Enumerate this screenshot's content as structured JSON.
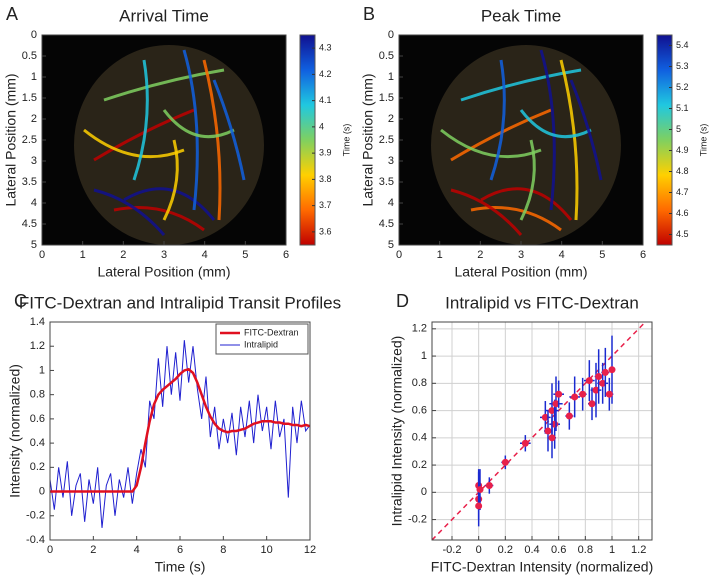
{
  "chart_data": [
    {
      "panel": "A",
      "type": "image",
      "title": "Arrival Time",
      "xlabel": "Lateral Position (mm)",
      "ylabel": "Lateral Position (mm)",
      "xlim": [
        0,
        6
      ],
      "xticks": [
        0,
        1,
        2,
        3,
        4,
        5,
        6
      ],
      "ylim": [
        5,
        0
      ],
      "yticks": [
        0,
        0.5,
        1,
        1.5,
        2,
        2.5,
        3,
        3.5,
        4,
        4.5,
        5
      ],
      "colorbar": {
        "label": "Time (s)",
        "lim": [
          3.55,
          4.35
        ],
        "ticks": [
          3.6,
          3.7,
          3.8,
          3.9,
          4,
          4.1,
          4.2,
          4.3
        ],
        "colors": [
          "#c00000",
          "#ff6a00",
          "#ffd000",
          "#7fd060",
          "#20c8e0",
          "#1060e0",
          "#101090"
        ]
      }
    },
    {
      "panel": "B",
      "type": "image",
      "title": "Peak Time",
      "xlabel": "Lateral Position (mm)",
      "ylabel": "Lateral Position (mm)",
      "xlim": [
        0,
        6
      ],
      "xticks": [
        0,
        1,
        2,
        3,
        4,
        5,
        6
      ],
      "ylim": [
        5,
        0
      ],
      "yticks": [
        0,
        0.5,
        1,
        1.5,
        2,
        2.5,
        3,
        3.5,
        4,
        4.5,
        5
      ],
      "colorbar": {
        "label": "Time (s)",
        "lim": [
          4.45,
          5.45
        ],
        "ticks": [
          4.5,
          4.6,
          4.7,
          4.8,
          4.9,
          5,
          5.1,
          5.2,
          5.3,
          5.4
        ],
        "colors": [
          "#c00000",
          "#ff6a00",
          "#ffd000",
          "#7fd060",
          "#20c8e0",
          "#1060e0",
          "#101090"
        ]
      }
    },
    {
      "panel": "C",
      "type": "line",
      "title": "FITC-Dextran and Intralipid Transit Profiles",
      "xlabel": "Time (s)",
      "ylabel": "Intensity (normalized)",
      "xlim": [
        0,
        12
      ],
      "xticks": [
        0,
        2,
        4,
        6,
        8,
        10,
        12
      ],
      "ylim": [
        -0.4,
        1.4
      ],
      "yticks": [
        -0.4,
        -0.2,
        0,
        0.2,
        0.4,
        0.6,
        0.8,
        1,
        1.2,
        1.4
      ],
      "legend": "upper right",
      "grid": false,
      "x": [
        0,
        0.2,
        0.4,
        0.6,
        0.8,
        1,
        1.2,
        1.4,
        1.6,
        1.8,
        2,
        2.2,
        2.4,
        2.6,
        2.8,
        3,
        3.2,
        3.4,
        3.6,
        3.8,
        4,
        4.2,
        4.4,
        4.6,
        4.8,
        5,
        5.2,
        5.4,
        5.6,
        5.8,
        6,
        6.2,
        6.4,
        6.6,
        6.8,
        7,
        7.2,
        7.4,
        7.6,
        7.8,
        8,
        8.2,
        8.4,
        8.6,
        8.8,
        9,
        9.2,
        9.4,
        9.6,
        9.8,
        10,
        10.2,
        10.4,
        10.6,
        10.8,
        11,
        11.2,
        11.4,
        11.6,
        11.8,
        12
      ],
      "series": [
        {
          "name": "Intralipid",
          "color": "#2020d0",
          "width": 1,
          "values": [
            0.1,
            -0.15,
            0.2,
            -0.05,
            0.25,
            -0.2,
            0.05,
            0.15,
            -0.25,
            0.1,
            -0.1,
            0.2,
            -0.3,
            0.05,
            0.15,
            -0.2,
            0.1,
            -0.05,
            0.2,
            -0.1,
            0.15,
            0.35,
            0.2,
            0.75,
            0.6,
            1.1,
            0.7,
            1.2,
            0.8,
            1.15,
            0.75,
            1.25,
            0.9,
            1.2,
            0.85,
            0.6,
            0.95,
            0.45,
            0.7,
            0.35,
            0.6,
            0.4,
            0.65,
            0.3,
            0.7,
            0.45,
            0.75,
            0.4,
            0.8,
            0.5,
            0.7,
            0.35,
            0.75,
            0.45,
            0.6,
            -0.05,
            0.7,
            0.4,
            0.75,
            0.5,
            0.55
          ]
        },
        {
          "name": "FITC-Dextran",
          "color": "#e01020",
          "width": 2.5,
          "values": [
            0,
            0,
            0,
            0,
            0,
            0,
            0,
            0,
            0,
            0,
            0,
            0,
            0,
            0,
            0,
            0,
            0,
            0,
            0,
            0,
            0.05,
            0.2,
            0.4,
            0.58,
            0.72,
            0.8,
            0.84,
            0.87,
            0.9,
            0.93,
            0.97,
            1,
            1.01,
            0.98,
            0.9,
            0.8,
            0.7,
            0.62,
            0.56,
            0.52,
            0.5,
            0.49,
            0.5,
            0.5,
            0.51,
            0.52,
            0.54,
            0.56,
            0.57,
            0.58,
            0.58,
            0.58,
            0.57,
            0.57,
            0.56,
            0.56,
            0.55,
            0.55,
            0.54,
            0.55,
            0.54
          ]
        }
      ]
    },
    {
      "panel": "D",
      "type": "scatter",
      "title": "Intralipid vs FITC-Dextran",
      "xlabel": "FITC-Dextran Intensity (normalized)",
      "ylabel": "Intralipid Intensity (normalized)",
      "xlim": [
        -0.35,
        1.3
      ],
      "xticks": [
        -0.2,
        0,
        0.2,
        0.4,
        0.6,
        0.8,
        1,
        1.2
      ],
      "ylim": [
        -0.35,
        1.25
      ],
      "yticks": [
        -0.2,
        0,
        0.2,
        0.4,
        0.6,
        0.8,
        1,
        1.2
      ],
      "grid": true,
      "identity_line": true,
      "color": "#e8204a",
      "errorbar_color": "#1a2ad0",
      "x": [
        0,
        0,
        0.01,
        0,
        0.08,
        0.2,
        0.35,
        0.5,
        0.52,
        0.55,
        0.57,
        0.58,
        0.6,
        0.55,
        0.68,
        0.72,
        0.78,
        0.83,
        0.85,
        0.88,
        0.9,
        0.93,
        0.95,
        1,
        0.98
      ],
      "values": [
        0.05,
        -0.05,
        0.02,
        -0.1,
        0.05,
        0.22,
        0.36,
        0.55,
        0.45,
        0.6,
        0.5,
        0.65,
        0.72,
        0.4,
        0.56,
        0.7,
        0.72,
        0.82,
        0.65,
        0.75,
        0.85,
        0.8,
        0.88,
        0.9,
        0.72
      ],
      "xerr": [
        0.02,
        0.02,
        0.02,
        0.02,
        0.03,
        0.03,
        0.04,
        0.04,
        0.03,
        0.05,
        0.04,
        0.05,
        0.04,
        0.03,
        0.03,
        0.04,
        0.03,
        0.04,
        0.03,
        0.04,
        0.03,
        0.04,
        0.03,
        0.02,
        0.03
      ],
      "yerr": [
        0.12,
        0.2,
        0.15,
        0.1,
        0.06,
        0.05,
        0.06,
        0.12,
        0.15,
        0.2,
        0.18,
        0.2,
        0.1,
        0.15,
        0.1,
        0.15,
        0.12,
        0.15,
        0.12,
        0.2,
        0.2,
        0.15,
        0.18,
        0.25,
        0.12
      ]
    }
  ]
}
